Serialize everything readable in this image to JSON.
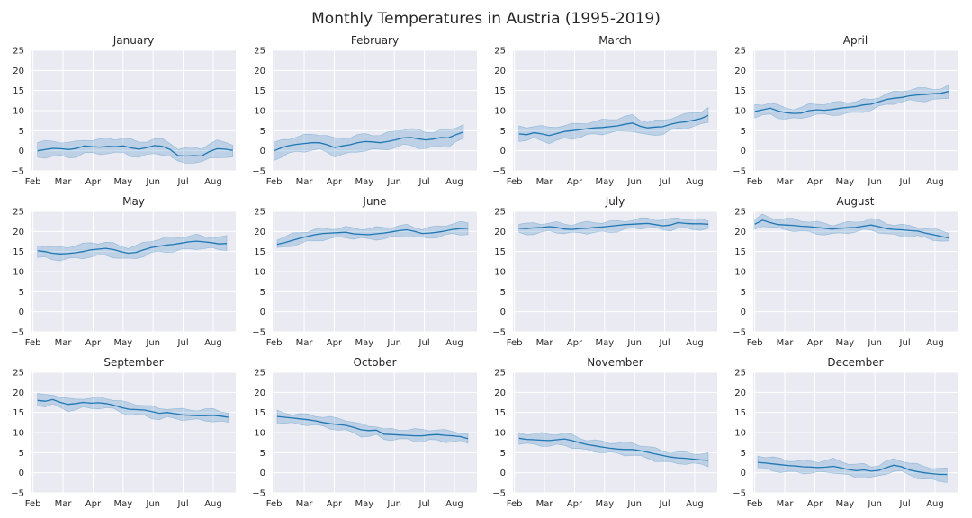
{
  "title": "Monthly Temperatures in Austria (1995-2019)",
  "chart_data": {
    "type": "line",
    "subtitle": "",
    "xlabel": "",
    "ylabel": "",
    "ylim": [
      -5,
      25
    ],
    "yticks": [
      -5,
      0,
      5,
      10,
      15,
      20,
      25
    ],
    "xticks": [
      "Feb",
      "Mar",
      "Apr",
      "May",
      "Jun",
      "Jul",
      "Aug"
    ],
    "grid": true,
    "legend": false,
    "line_color": "#1f77b4",
    "background": "#eaeaf2",
    "panels": [
      {
        "title": "January",
        "x_start_offset": 0.15,
        "x_end_offset": 6.65,
        "mean": [
          0.0,
          0.3,
          0.6,
          0.5,
          0.3,
          0.6,
          1.2,
          1.0,
          0.9,
          1.1,
          1.0,
          1.2,
          0.7,
          0.4,
          0.8,
          1.3,
          1.1,
          0.3,
          -1.2,
          -1.3,
          -1.2,
          -1.3,
          -0.2,
          0.5,
          0.4,
          0.1
        ],
        "spread": 1.8
      },
      {
        "title": "February",
        "x_start_offset": 0.0,
        "x_end_offset": 6.3,
        "mean": [
          0.0,
          0.8,
          1.3,
          1.6,
          1.8,
          2.0,
          2.0,
          1.5,
          0.8,
          1.2,
          1.5,
          2.0,
          2.3,
          2.2,
          2.0,
          2.3,
          2.7,
          3.2,
          3.3,
          3.0,
          2.7,
          2.9,
          3.3,
          3.2,
          4.0,
          4.7
        ],
        "spread": 2.0
      },
      {
        "title": "March",
        "x_start_offset": 0.15,
        "x_end_offset": 6.45,
        "mean": [
          4.2,
          4.0,
          4.5,
          4.2,
          3.8,
          4.3,
          4.8,
          5.0,
          5.2,
          5.5,
          5.7,
          5.8,
          6.0,
          6.2,
          6.6,
          6.9,
          6.1,
          5.7,
          5.9,
          6.0,
          6.6,
          7.0,
          7.2,
          7.6,
          8.0,
          8.8
        ],
        "spread": 1.7
      },
      {
        "title": "April",
        "x_start_offset": 0.0,
        "x_end_offset": 6.45,
        "mean": [
          9.8,
          10.2,
          10.6,
          9.9,
          9.5,
          9.3,
          9.4,
          10.0,
          10.2,
          10.1,
          10.3,
          10.6,
          10.8,
          11.0,
          11.4,
          11.6,
          12.2,
          12.8,
          13.1,
          13.3,
          13.7,
          13.9,
          14.0,
          14.2,
          14.3,
          14.8
        ],
        "spread": 1.4
      },
      {
        "title": "May",
        "x_start_offset": 0.15,
        "x_end_offset": 6.45,
        "mean": [
          15.2,
          15.0,
          14.6,
          14.4,
          14.5,
          14.7,
          15.0,
          15.4,
          15.6,
          15.8,
          15.5,
          15.0,
          14.6,
          14.8,
          15.4,
          16.0,
          16.3,
          16.6,
          16.8,
          17.1,
          17.4,
          17.6,
          17.4,
          17.2,
          16.9,
          17.0
        ],
        "spread": 1.6
      },
      {
        "title": "June",
        "x_start_offset": 0.1,
        "x_end_offset": 6.45,
        "mean": [
          16.8,
          17.2,
          17.8,
          18.3,
          18.8,
          19.2,
          19.5,
          19.6,
          19.7,
          19.8,
          19.4,
          19.3,
          19.2,
          19.4,
          19.6,
          19.9,
          20.2,
          20.4,
          20.0,
          19.5,
          19.6,
          19.8,
          20.1,
          20.5,
          20.7,
          20.8
        ],
        "spread": 1.3
      },
      {
        "title": "July",
        "x_start_offset": 0.15,
        "x_end_offset": 6.45,
        "mean": [
          20.8,
          20.7,
          20.9,
          21.0,
          21.2,
          21.0,
          20.6,
          20.5,
          20.7,
          20.8,
          21.0,
          21.1,
          21.3,
          21.5,
          21.7,
          21.8,
          21.9,
          22.0,
          21.7,
          21.4,
          21.6,
          22.2,
          22.0,
          21.9,
          21.9,
          21.8
        ],
        "spread": 1.2
      },
      {
        "title": "August",
        "x_start_offset": 0.0,
        "x_end_offset": 6.45,
        "mean": [
          21.8,
          22.8,
          22.2,
          21.7,
          21.6,
          21.5,
          21.3,
          21.2,
          21.0,
          20.8,
          20.6,
          20.8,
          20.9,
          21.0,
          21.3,
          21.6,
          21.2,
          20.7,
          20.5,
          20.4,
          20.2,
          20.1,
          19.6,
          19.2,
          18.8,
          18.4
        ],
        "spread": 1.3
      },
      {
        "title": "September",
        "x_start_offset": 0.15,
        "x_end_offset": 6.5,
        "mean": [
          18.0,
          17.8,
          18.2,
          17.5,
          17.0,
          17.2,
          17.5,
          17.3,
          17.4,
          17.2,
          16.8,
          16.2,
          15.8,
          15.7,
          15.6,
          15.2,
          14.8,
          15.0,
          14.7,
          14.4,
          14.3,
          14.2,
          14.2,
          14.3,
          14.1,
          13.8
        ],
        "spread": 1.3
      },
      {
        "title": "October",
        "x_start_offset": 0.1,
        "x_end_offset": 6.45,
        "mean": [
          14.0,
          13.8,
          13.6,
          13.4,
          13.2,
          12.9,
          12.5,
          12.2,
          12.0,
          11.8,
          11.3,
          10.7,
          10.5,
          10.6,
          9.6,
          9.5,
          9.4,
          9.3,
          9.2,
          9.2,
          9.4,
          9.5,
          9.3,
          9.2,
          9.0,
          8.5
        ],
        "spread": 1.3
      },
      {
        "title": "November",
        "x_start_offset": 0.15,
        "x_end_offset": 6.45,
        "mean": [
          8.6,
          8.3,
          8.2,
          8.1,
          8.0,
          8.2,
          8.4,
          8.0,
          7.5,
          7.0,
          6.7,
          6.4,
          6.1,
          5.9,
          5.8,
          5.8,
          5.5,
          5.1,
          4.7,
          4.3,
          3.9,
          3.7,
          3.6,
          3.4,
          3.2,
          3.1
        ],
        "spread": 1.4
      },
      {
        "title": "December",
        "x_start_offset": 0.1,
        "x_end_offset": 6.4,
        "mean": [
          2.6,
          2.4,
          2.2,
          2.0,
          1.8,
          1.7,
          1.5,
          1.4,
          1.3,
          1.4,
          1.6,
          1.2,
          0.8,
          0.5,
          0.7,
          0.4,
          0.6,
          1.3,
          1.9,
          1.5,
          0.7,
          0.3,
          0.0,
          -0.2,
          -0.4,
          -0.4
        ],
        "spread": 1.5
      }
    ]
  }
}
